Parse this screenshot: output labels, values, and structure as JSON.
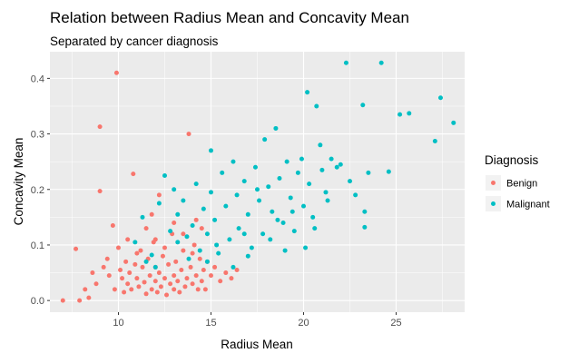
{
  "chart_data": {
    "type": "scatter",
    "title": "Relation between Radius Mean and Concavity Mean",
    "subtitle": "Separated by cancer diagnosis",
    "xlabel": "Radius Mean",
    "ylabel": "Concavity Mean",
    "xlim": [
      6.3,
      28.7
    ],
    "ylim": [
      -0.021,
      0.448
    ],
    "x_ticks": [
      10,
      15,
      20,
      25
    ],
    "y_ticks": [
      0.0,
      0.1,
      0.2,
      0.3,
      0.4
    ],
    "x_tick_labels": [
      "10",
      "15",
      "20",
      "25"
    ],
    "y_tick_labels": [
      "0.0",
      "0.1",
      "0.2",
      "0.3",
      "0.4"
    ],
    "grid": true,
    "legend": {
      "title": "Diagnosis",
      "position": "right"
    },
    "series": [
      {
        "name": "Benign",
        "color": "#F8766D",
        "points": [
          [
            7.0,
            0.0
          ],
          [
            7.7,
            0.093
          ],
          [
            7.9,
            0.0
          ],
          [
            8.2,
            0.02
          ],
          [
            8.4,
            0.005
          ],
          [
            8.6,
            0.05
          ],
          [
            8.8,
            0.03
          ],
          [
            9.0,
            0.313
          ],
          [
            9.0,
            0.197
          ],
          [
            9.2,
            0.06
          ],
          [
            9.4,
            0.075
          ],
          [
            9.5,
            0.045
          ],
          [
            9.7,
            0.135
          ],
          [
            9.8,
            0.02
          ],
          [
            9.9,
            0.41
          ],
          [
            10.0,
            0.095
          ],
          [
            10.1,
            0.055
          ],
          [
            10.2,
            0.04
          ],
          [
            10.3,
            0.015
          ],
          [
            10.4,
            0.07
          ],
          [
            10.5,
            0.03
          ],
          [
            10.6,
            0.05
          ],
          [
            10.7,
            0.02
          ],
          [
            10.8,
            0.228
          ],
          [
            10.9,
            0.065
          ],
          [
            11.0,
            0.04
          ],
          [
            11.1,
            0.025
          ],
          [
            11.2,
            0.09
          ],
          [
            11.3,
            0.06
          ],
          [
            11.4,
            0.033
          ],
          [
            11.5,
            0.012
          ],
          [
            11.6,
            0.075
          ],
          [
            11.7,
            0.045
          ],
          [
            11.8,
            0.02
          ],
          [
            11.9,
            0.105
          ],
          [
            12.0,
            0.035
          ],
          [
            12.0,
            0.06
          ],
          [
            12.1,
            0.015
          ],
          [
            12.2,
            0.05
          ],
          [
            12.3,
            0.025
          ],
          [
            12.4,
            0.08
          ],
          [
            12.5,
            0.04
          ],
          [
            12.6,
            0.01
          ],
          [
            12.7,
            0.065
          ],
          [
            12.8,
            0.03
          ],
          [
            12.9,
            0.12
          ],
          [
            13.0,
            0.045
          ],
          [
            13.0,
            0.02
          ],
          [
            13.1,
            0.07
          ],
          [
            13.2,
            0.035
          ],
          [
            13.3,
            0.015
          ],
          [
            13.4,
            0.055
          ],
          [
            13.5,
            0.09
          ],
          [
            13.6,
            0.025
          ],
          [
            13.7,
            0.04
          ],
          [
            13.8,
            0.3
          ],
          [
            13.9,
            0.06
          ],
          [
            14.0,
            0.03
          ],
          [
            14.1,
            0.1
          ],
          [
            14.2,
            0.045
          ],
          [
            14.3,
            0.02
          ],
          [
            14.4,
            0.075
          ],
          [
            14.5,
            0.035
          ],
          [
            14.6,
            0.055
          ],
          [
            14.7,
            0.02
          ],
          [
            14.8,
            0.07
          ],
          [
            15.0,
            0.045
          ],
          [
            15.2,
            0.06
          ],
          [
            15.5,
            0.035
          ],
          [
            15.8,
            0.05
          ],
          [
            16.1,
            0.04
          ],
          [
            16.4,
            0.055
          ],
          [
            11.0,
            0.085
          ],
          [
            11.5,
            0.13
          ],
          [
            12.0,
            0.11
          ],
          [
            12.5,
            0.095
          ],
          [
            13.0,
            0.14
          ],
          [
            13.5,
            0.12
          ],
          [
            14.0,
            0.085
          ],
          [
            14.5,
            0.13
          ],
          [
            10.5,
            0.11
          ],
          [
            12.2,
            0.19
          ],
          [
            14.2,
            0.145
          ],
          [
            11.8,
            0.155
          ]
        ]
      },
      {
        "name": "Malignant",
        "color": "#00BFC4",
        "points": [
          [
            10.9,
            0.105
          ],
          [
            11.3,
            0.15
          ],
          [
            11.5,
            0.07
          ],
          [
            11.8,
            0.082
          ],
          [
            12.2,
            0.175
          ],
          [
            12.5,
            0.225
          ],
          [
            12.8,
            0.125
          ],
          [
            13.0,
            0.2
          ],
          [
            13.2,
            0.155
          ],
          [
            13.5,
            0.18
          ],
          [
            13.7,
            0.115
          ],
          [
            14.0,
            0.135
          ],
          [
            14.2,
            0.21
          ],
          [
            14.4,
            0.09
          ],
          [
            14.6,
            0.165
          ],
          [
            14.8,
            0.12
          ],
          [
            15.0,
            0.27
          ],
          [
            15.0,
            0.195
          ],
          [
            15.2,
            0.145
          ],
          [
            15.4,
            0.085
          ],
          [
            15.6,
            0.23
          ],
          [
            15.8,
            0.17
          ],
          [
            16.0,
            0.11
          ],
          [
            16.2,
            0.25
          ],
          [
            16.4,
            0.19
          ],
          [
            16.5,
            0.13
          ],
          [
            16.8,
            0.215
          ],
          [
            17.0,
            0.155
          ],
          [
            17.2,
            0.095
          ],
          [
            17.4,
            0.24
          ],
          [
            17.6,
            0.18
          ],
          [
            17.8,
            0.12
          ],
          [
            17.9,
            0.29
          ],
          [
            18.1,
            0.205
          ],
          [
            18.3,
            0.16
          ],
          [
            18.5,
            0.31
          ],
          [
            18.7,
            0.22
          ],
          [
            18.9,
            0.14
          ],
          [
            19.1,
            0.25
          ],
          [
            19.3,
            0.185
          ],
          [
            19.5,
            0.125
          ],
          [
            19.7,
            0.23
          ],
          [
            19.9,
            0.255
          ],
          [
            20.0,
            0.17
          ],
          [
            20.2,
            0.375
          ],
          [
            20.3,
            0.21
          ],
          [
            20.5,
            0.15
          ],
          [
            20.7,
            0.35
          ],
          [
            20.9,
            0.28
          ],
          [
            21.0,
            0.235
          ],
          [
            21.2,
            0.195
          ],
          [
            21.5,
            0.255
          ],
          [
            21.8,
            0.24
          ],
          [
            22.0,
            0.245
          ],
          [
            22.3,
            0.428
          ],
          [
            22.5,
            0.215
          ],
          [
            22.8,
            0.19
          ],
          [
            23.2,
            0.352
          ],
          [
            23.3,
            0.16
          ],
          [
            23.5,
            0.23
          ],
          [
            24.2,
            0.428
          ],
          [
            24.6,
            0.232
          ],
          [
            25.2,
            0.335
          ],
          [
            25.7,
            0.337
          ],
          [
            27.1,
            0.287
          ],
          [
            27.4,
            0.365
          ],
          [
            28.1,
            0.32
          ],
          [
            23.3,
            0.132
          ],
          [
            13.2,
            0.105
          ],
          [
            14.8,
            0.07
          ],
          [
            16.2,
            0.06
          ],
          [
            17.0,
            0.08
          ],
          [
            18.2,
            0.11
          ],
          [
            19.0,
            0.09
          ],
          [
            20.1,
            0.095
          ],
          [
            12.0,
            0.06
          ],
          [
            13.8,
            0.075
          ],
          [
            15.3,
            0.1
          ],
          [
            16.8,
            0.12
          ],
          [
            18.6,
            0.145
          ],
          [
            19.4,
            0.16
          ],
          [
            20.6,
            0.13
          ],
          [
            21.3,
            0.18
          ],
          [
            17.5,
            0.2
          ]
        ]
      }
    ]
  }
}
